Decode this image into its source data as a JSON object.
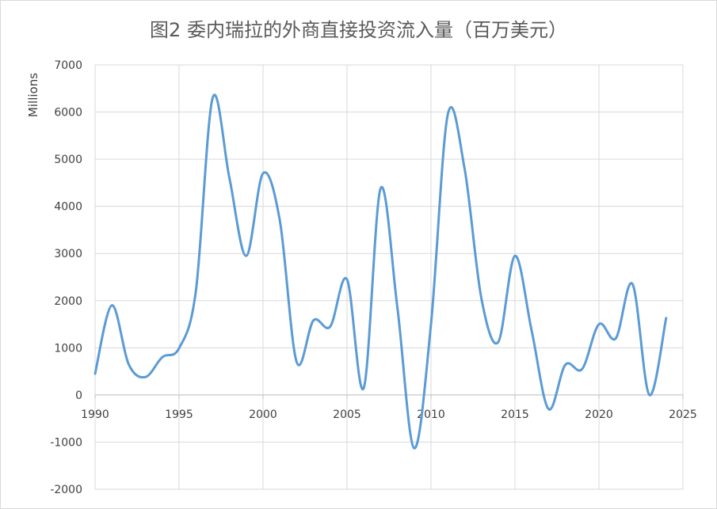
{
  "chart_data": {
    "type": "line",
    "title": "图2 委内瑞拉的外商直接投资流入量（百万美元）",
    "xlabel": "",
    "ylabel": "Millions",
    "xlim": [
      1990,
      2025
    ],
    "ylim": [
      -2000,
      7000
    ],
    "x_ticks": [
      1990,
      1995,
      2000,
      2005,
      2010,
      2015,
      2020,
      2025
    ],
    "y_ticks": [
      -2000,
      -1000,
      0,
      1000,
      2000,
      3000,
      4000,
      5000,
      6000,
      7000
    ],
    "grid": true,
    "smooth": true,
    "series": [
      {
        "name": "",
        "color": "#5b9bd5",
        "x": [
          1990,
          1991,
          1992,
          1993,
          1994,
          1995,
          1996,
          1997,
          1998,
          1999,
          2000,
          2001,
          2002,
          2003,
          2004,
          2005,
          2006,
          2007,
          2008,
          2009,
          2010,
          2011,
          2012,
          2013,
          2014,
          2015,
          2016,
          2017,
          2018,
          2019,
          2020,
          2021,
          2022,
          2023,
          2024
        ],
        "values": [
          450,
          1900,
          650,
          380,
          800,
          990,
          2200,
          6300,
          4600,
          2950,
          4700,
          3700,
          700,
          1580,
          1450,
          2450,
          150,
          4380,
          1850,
          -1130,
          1500,
          5950,
          4800,
          2050,
          1120,
          2950,
          1350,
          -300,
          640,
          550,
          1500,
          1200,
          2350,
          0,
          1630
        ]
      }
    ]
  }
}
